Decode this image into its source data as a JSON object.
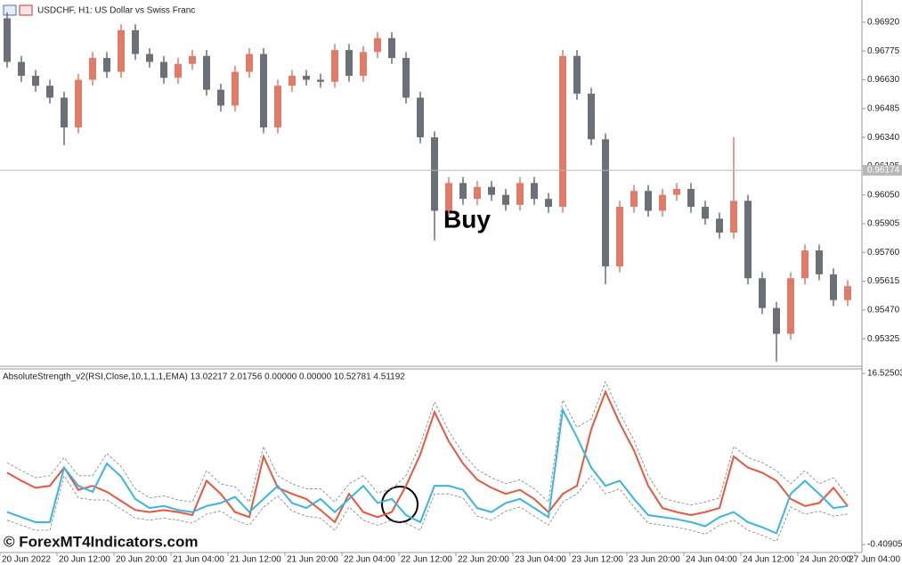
{
  "chart_data": [
    {
      "type": "candlestick",
      "title": "USDCHF, H1: US Dollar vs Swiss Franc",
      "annotation": "Buy",
      "open": [
        0.9694,
        0.9672,
        0.9665,
        0.966,
        0.9654,
        0.9639,
        0.9663,
        0.9674,
        0.9667,
        0.9688,
        0.9676,
        0.9672,
        0.9664,
        0.9671,
        0.9675,
        0.9658,
        0.965,
        0.9667,
        0.9676,
        0.9639,
        0.966,
        0.9665,
        0.9663,
        0.9662,
        0.9678,
        0.9665,
        0.9677,
        0.9684,
        0.9674,
        0.9654,
        0.9634,
        0.9597,
        0.9611,
        0.9603,
        0.9609,
        0.9605,
        0.96,
        0.9611,
        0.9603,
        0.9599,
        0.9675,
        0.9656,
        0.9633,
        0.9569,
        0.9599,
        0.9607,
        0.9597,
        0.9605,
        0.9608,
        0.9599,
        0.9593,
        0.9586,
        0.9602,
        0.9563,
        0.9548,
        0.9535,
        0.9563,
        0.9577,
        0.9565,
        0.9552
      ],
      "high": [
        0.9697,
        0.9675,
        0.9668,
        0.9663,
        0.9657,
        0.9666,
        0.9677,
        0.9677,
        0.9691,
        0.9691,
        0.9679,
        0.9675,
        0.9674,
        0.9678,
        0.9678,
        0.9661,
        0.967,
        0.9679,
        0.9679,
        0.9663,
        0.9668,
        0.9668,
        0.9666,
        0.9681,
        0.9681,
        0.968,
        0.9687,
        0.9687,
        0.9677,
        0.9657,
        0.9637,
        0.9614,
        0.9614,
        0.9612,
        0.9612,
        0.9608,
        0.9614,
        0.9614,
        0.9606,
        0.9678,
        0.9678,
        0.9659,
        0.9636,
        0.9602,
        0.961,
        0.961,
        0.9608,
        0.9611,
        0.9611,
        0.9602,
        0.9596,
        0.9634,
        0.9605,
        0.9566,
        0.9551,
        0.9566,
        0.958,
        0.958,
        0.9568,
        0.9562
      ],
      "low": [
        0.9669,
        0.9662,
        0.9657,
        0.9651,
        0.963,
        0.9636,
        0.966,
        0.9664,
        0.9664,
        0.9673,
        0.9669,
        0.9661,
        0.9661,
        0.9668,
        0.9655,
        0.9647,
        0.9647,
        0.9664,
        0.9636,
        0.9636,
        0.9657,
        0.966,
        0.9659,
        0.9659,
        0.9662,
        0.9662,
        0.9674,
        0.9671,
        0.9651,
        0.9631,
        0.9582,
        0.9594,
        0.96,
        0.96,
        0.9602,
        0.9597,
        0.9597,
        0.96,
        0.9596,
        0.9596,
        0.9653,
        0.963,
        0.956,
        0.9566,
        0.9596,
        0.9594,
        0.9594,
        0.9602,
        0.9596,
        0.959,
        0.9583,
        0.9583,
        0.956,
        0.9545,
        0.9521,
        0.9532,
        0.956,
        0.9562,
        0.9549,
        0.9549
      ],
      "close": [
        0.9672,
        0.9665,
        0.966,
        0.9654,
        0.9639,
        0.9663,
        0.9674,
        0.9667,
        0.9688,
        0.9676,
        0.9672,
        0.9664,
        0.9671,
        0.9675,
        0.9658,
        0.965,
        0.9667,
        0.9676,
        0.9639,
        0.966,
        0.9665,
        0.9663,
        0.9662,
        0.9678,
        0.9665,
        0.9677,
        0.9684,
        0.9674,
        0.9654,
        0.9634,
        0.9597,
        0.9611,
        0.9603,
        0.9609,
        0.9605,
        0.96,
        0.9611,
        0.9603,
        0.9599,
        0.9675,
        0.9656,
        0.9633,
        0.9569,
        0.9599,
        0.9607,
        0.9597,
        0.9605,
        0.9608,
        0.9599,
        0.9593,
        0.9586,
        0.9602,
        0.9563,
        0.9548,
        0.9535,
        0.9563,
        0.9577,
        0.9565,
        0.9552,
        0.9559
      ],
      "up_color": "#e07b6a",
      "down_color": "#6b6f76",
      "ylim": [
        0.95191,
        0.97032
      ],
      "yticks": [
        {
          "value": 0.9692,
          "label": "0.96920"
        },
        {
          "value": 0.96775,
          "label": "0.96775"
        },
        {
          "value": 0.9663,
          "label": "0.96630"
        },
        {
          "value": 0.96485,
          "label": "0.96485"
        },
        {
          "value": 0.9634,
          "label": "0.96340"
        },
        {
          "value": 0.96195,
          "label": "0.96195"
        },
        {
          "value": 0.9605,
          "label": "0.96050"
        },
        {
          "value": 0.95905,
          "label": "0.95905"
        },
        {
          "value": 0.9576,
          "label": "0.95760"
        },
        {
          "value": 0.95615,
          "label": "0.95615"
        },
        {
          "value": 0.9547,
          "label": "0.95470"
        },
        {
          "value": 0.95325,
          "label": "0.95325"
        }
      ],
      "current_price": 0.96174
    },
    {
      "type": "line",
      "title": "AbsoluteStrength_v2(RSI,Close,10,1,1,1,EMA) 13.02217 2.01756 0.00000 0.00000 10.52781 4.51192",
      "series": [
        {
          "color": "#e8573c",
          "style": "solid",
          "values": [
            6.7,
            5.9,
            5.2,
            5.4,
            7.2,
            5.0,
            5.4,
            4.8,
            3.9,
            3.0,
            2.8,
            3.0,
            2.8,
            2.5,
            5.9,
            4.6,
            2.8,
            2.3,
            8.3,
            5.2,
            4.6,
            4.1,
            3.0,
            1.8,
            4.6,
            2.8,
            2.3,
            2.8,
            5.4,
            8.5,
            12.7,
            9.8,
            7.6,
            6.0,
            5.2,
            4.6,
            5.0,
            4.1,
            2.8,
            4.6,
            5.4,
            11.0,
            14.7,
            11.6,
            8.9,
            5.4,
            3.2,
            2.8,
            2.5,
            2.8,
            3.2,
            8.3,
            7.2,
            6.7,
            5.9,
            4.1,
            3.4,
            3.7,
            5.2,
            3.4
          ]
        },
        {
          "color": "#3ab4e8",
          "style": "solid",
          "values": [
            2.8,
            2.3,
            1.8,
            1.8,
            7.2,
            5.4,
            4.8,
            7.6,
            6.3,
            4.1,
            3.2,
            3.4,
            3.0,
            2.8,
            3.4,
            3.7,
            4.3,
            2.8,
            4.1,
            5.4,
            3.7,
            3.2,
            4.1,
            2.8,
            4.1,
            5.4,
            3.7,
            4.1,
            2.5,
            1.8,
            5.4,
            5.4,
            5.0,
            3.2,
            2.8,
            3.7,
            4.1,
            3.2,
            2.3,
            12.9,
            10.2,
            7.2,
            5.4,
            5.9,
            4.1,
            2.5,
            2.3,
            2.1,
            1.8,
            1.4,
            2.3,
            2.8,
            1.8,
            1.3,
            0.7,
            4.6,
            5.9,
            4.6,
            3.2,
            3.4
          ]
        },
        {
          "color": "#808080",
          "style": "dashed",
          "values": [
            7.7,
            6.9,
            6.2,
            6.4,
            8.2,
            6.4,
            6.4,
            8.6,
            7.3,
            5.1,
            4.2,
            4.4,
            4.0,
            3.8,
            6.9,
            5.6,
            5.3,
            3.8,
            9.3,
            6.4,
            5.6,
            5.1,
            5.1,
            3.8,
            5.6,
            6.4,
            4.7,
            5.1,
            6.4,
            9.5,
            13.7,
            10.8,
            8.6,
            7.0,
            6.2,
            5.6,
            6.0,
            5.1,
            3.8,
            13.9,
            11.2,
            12.0,
            15.7,
            12.6,
            9.9,
            6.4,
            4.2,
            3.8,
            3.5,
            3.8,
            4.2,
            9.3,
            8.2,
            7.7,
            6.9,
            5.6,
            6.9,
            5.6,
            6.2,
            4.4
          ]
        },
        {
          "color": "#808080",
          "style": "dashed",
          "values": [
            2.0,
            1.5,
            1.0,
            1.0,
            6.4,
            4.2,
            4.0,
            4.0,
            3.1,
            2.2,
            2.0,
            2.2,
            2.0,
            1.7,
            2.6,
            2.9,
            2.0,
            1.5,
            3.3,
            4.4,
            2.9,
            2.4,
            2.2,
            1.0,
            3.3,
            2.0,
            1.5,
            2.0,
            1.7,
            1.0,
            4.6,
            4.6,
            4.2,
            2.4,
            2.0,
            2.9,
            3.3,
            2.4,
            1.5,
            3.8,
            4.6,
            6.4,
            4.6,
            5.1,
            3.3,
            1.7,
            1.5,
            1.3,
            1.0,
            0.6,
            1.5,
            2.0,
            1.0,
            0.5,
            -0.1,
            3.3,
            2.6,
            2.9,
            2.4,
            2.6
          ]
        }
      ],
      "ylim": [
        -0.40905,
        16.52503
      ],
      "yticks": [
        16.52503,
        -0.40905
      ]
    }
  ],
  "x_labels": [
    "20 Jun 2022",
    "20 Jun 12:00",
    "20 Jun 20:00",
    "21 Jun 04:00",
    "21 Jun 12:00",
    "21 Jun 20:00",
    "22 Jun 04:00",
    "22 Jun 12:00",
    "22 Jun 20:00",
    "23 Jun 04:00",
    "23 Jun 12:00",
    "23 Jun 20:00",
    "24 Jun 04:00",
    "24 Jun 12:00",
    "24 Jun 20:00",
    "27 Jun 04:00"
  ],
  "watermark": "© ForexMT4Indicators.com"
}
